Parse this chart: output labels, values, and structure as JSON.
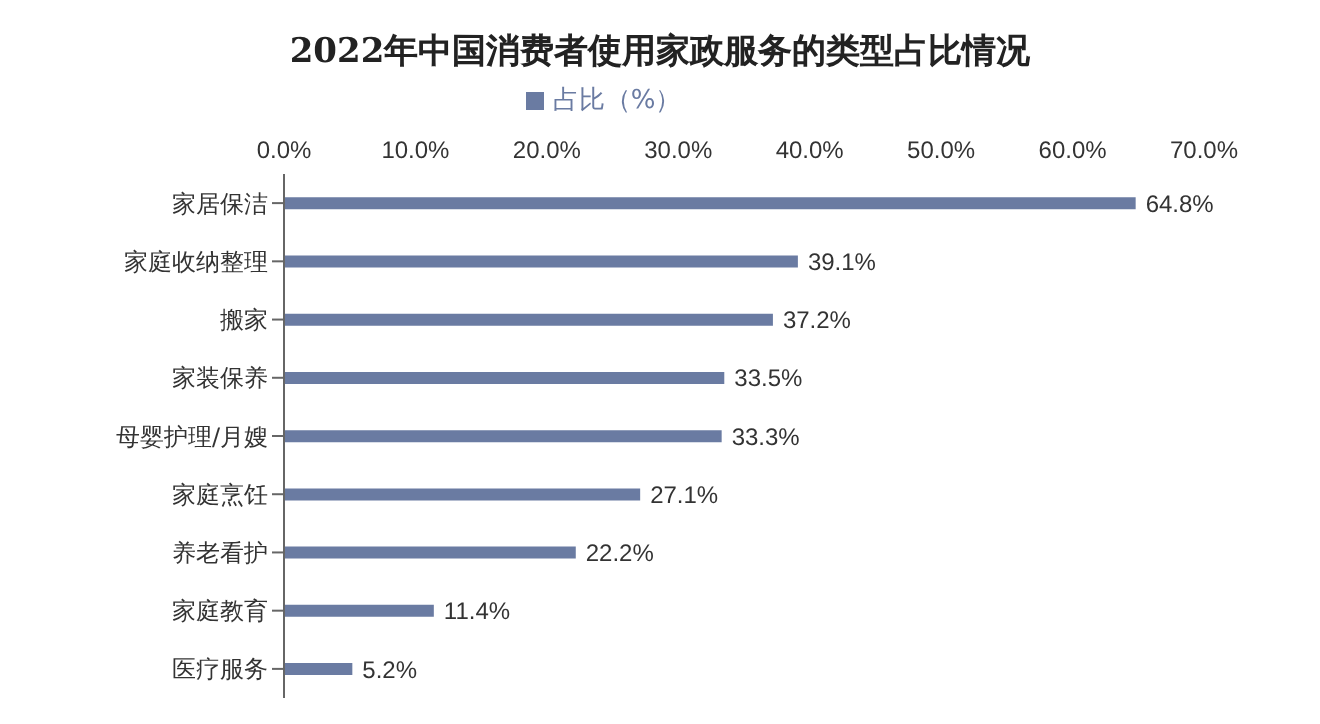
{
  "chart_data": {
    "type": "bar",
    "orientation": "horizontal",
    "title": "2022年中国消费者使用家政服务的类型占比情况",
    "categories": [
      "家居保洁",
      "家庭收纳整理",
      "搬家",
      "家装保养",
      "母婴护理/月嫂",
      "家庭烹饪",
      "养老看护",
      "家庭教育",
      "医疗服务"
    ],
    "series": [
      {
        "name": "占比（%）",
        "color": "#6a7ba2",
        "values": [
          64.8,
          39.1,
          37.2,
          33.5,
          33.3,
          27.1,
          22.2,
          11.4,
          5.2
        ],
        "value_labels": [
          "64.8%",
          "39.1%",
          "37.2%",
          "33.5%",
          "33.3%",
          "27.1%",
          "22.2%",
          "11.4%",
          "5.2%"
        ]
      }
    ],
    "xlim": [
      0,
      70
    ],
    "xticks": [
      {
        "value": 0,
        "label": "0.0%"
      },
      {
        "value": 10,
        "label": "10.0%"
      },
      {
        "value": 20,
        "label": "20.0%"
      },
      {
        "value": 30,
        "label": "30.0%"
      },
      {
        "value": 40,
        "label": "40.0%"
      },
      {
        "value": 50,
        "label": "50.0%"
      },
      {
        "value": 60,
        "label": "60.0%"
      },
      {
        "value": 70,
        "label": "70.0%"
      }
    ],
    "grid": false,
    "legend": "top"
  }
}
